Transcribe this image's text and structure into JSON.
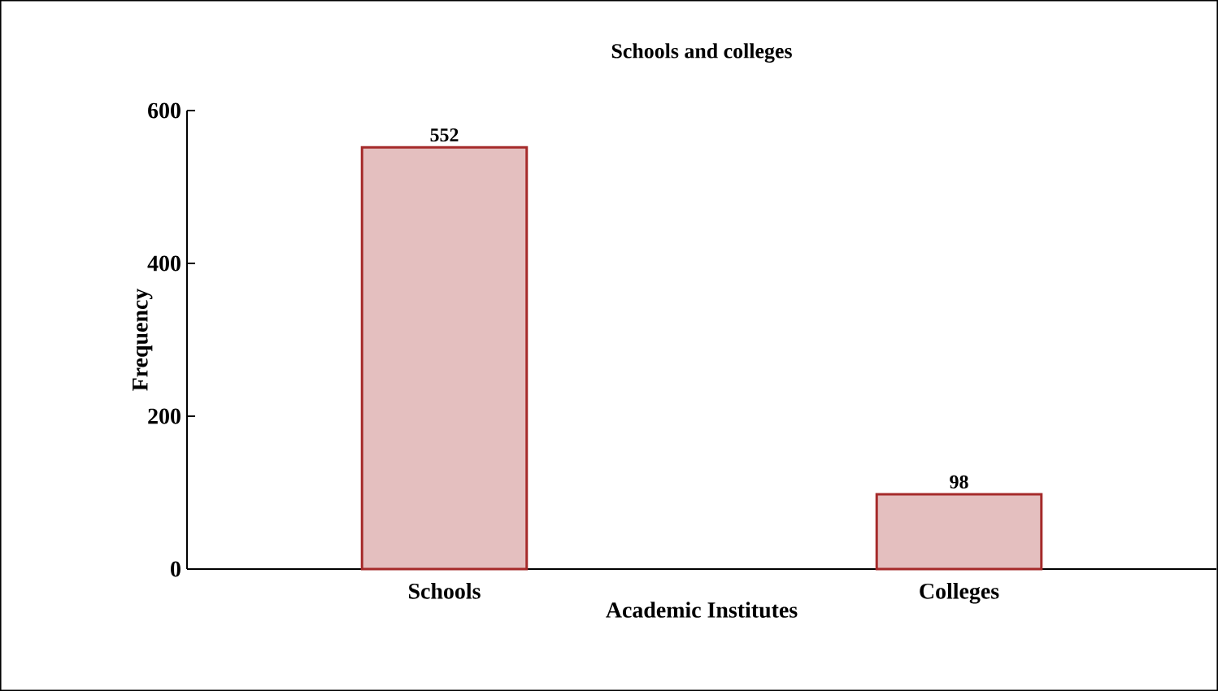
{
  "chart_data": {
    "type": "bar",
    "title": "Schools and colleges",
    "xlabel": "Academic Institutes",
    "ylabel": "Frequency",
    "categories": [
      "Schools",
      "Colleges"
    ],
    "values": [
      552,
      98
    ],
    "color": "#a52a2a",
    "ylim": [
      0,
      600
    ],
    "yticks": [
      0,
      200,
      400,
      600
    ],
    "data_labels": true
  }
}
